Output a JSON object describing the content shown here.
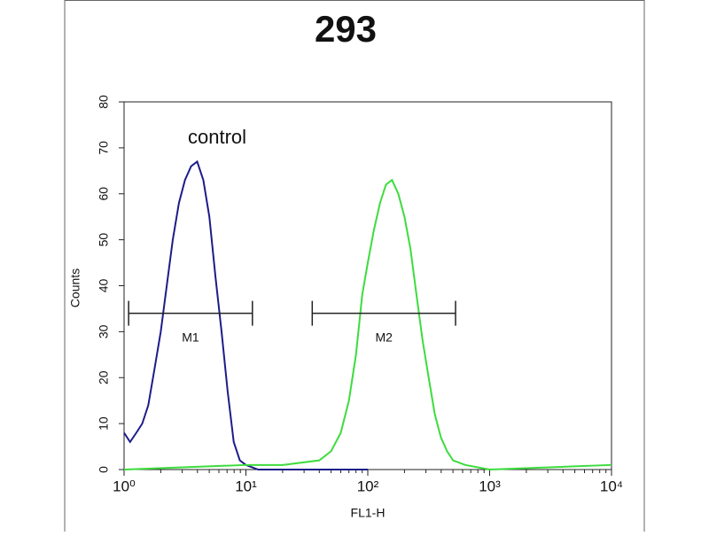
{
  "chart_data": {
    "type": "line",
    "title": "293",
    "xlabel": "FL1-H",
    "ylabel": "Counts",
    "annotation": "control",
    "xscale": "log",
    "xlim": [
      1,
      10000
    ],
    "xticks": [
      {
        "value": 1,
        "label": "10⁰"
      },
      {
        "value": 10,
        "label": "10¹"
      },
      {
        "value": 100,
        "label": "10²"
      },
      {
        "value": 1000,
        "label": "10³"
      },
      {
        "value": 10000,
        "label": "10⁴"
      }
    ],
    "ylim": [
      0,
      80
    ],
    "yticks": [
      0,
      10,
      20,
      30,
      40,
      50,
      60,
      70,
      80
    ],
    "series": [
      {
        "color": "#1c1c8a",
        "x": [
          1,
          1.12,
          1.26,
          1.41,
          1.58,
          1.78,
          2,
          2.24,
          2.51,
          2.82,
          3.16,
          3.55,
          3.98,
          4.47,
          5.01,
          5.62,
          6.31,
          7.08,
          7.94,
          8.91,
          10,
          12.6,
          20,
          40,
          100
        ],
        "values": [
          8,
          6,
          8,
          10,
          14,
          22,
          30,
          40,
          50,
          58,
          63,
          66,
          67,
          63,
          55,
          42,
          30,
          17,
          6,
          2,
          1,
          0,
          0,
          0,
          0
        ]
      },
      {
        "color": "#3ddc3d",
        "x": [
          1,
          10,
          20,
          40,
          50,
          60,
          70,
          80,
          90,
          100,
          112,
          126,
          141,
          158,
          178,
          200,
          224,
          251,
          282,
          316,
          355,
          398,
          447,
          501,
          631,
          1000,
          10000
        ],
        "values": [
          0,
          1,
          1,
          2,
          4,
          8,
          15,
          25,
          38,
          45,
          52,
          58,
          62,
          63,
          60,
          55,
          48,
          38,
          28,
          20,
          12,
          7,
          4,
          2,
          1,
          0,
          1
        ]
      }
    ],
    "markers": [
      {
        "label": "M1",
        "range": [
          1.09,
          11.3
        ],
        "y": 34
      },
      {
        "label": "M2",
        "range": [
          35,
          525
        ],
        "y": 34
      }
    ]
  }
}
